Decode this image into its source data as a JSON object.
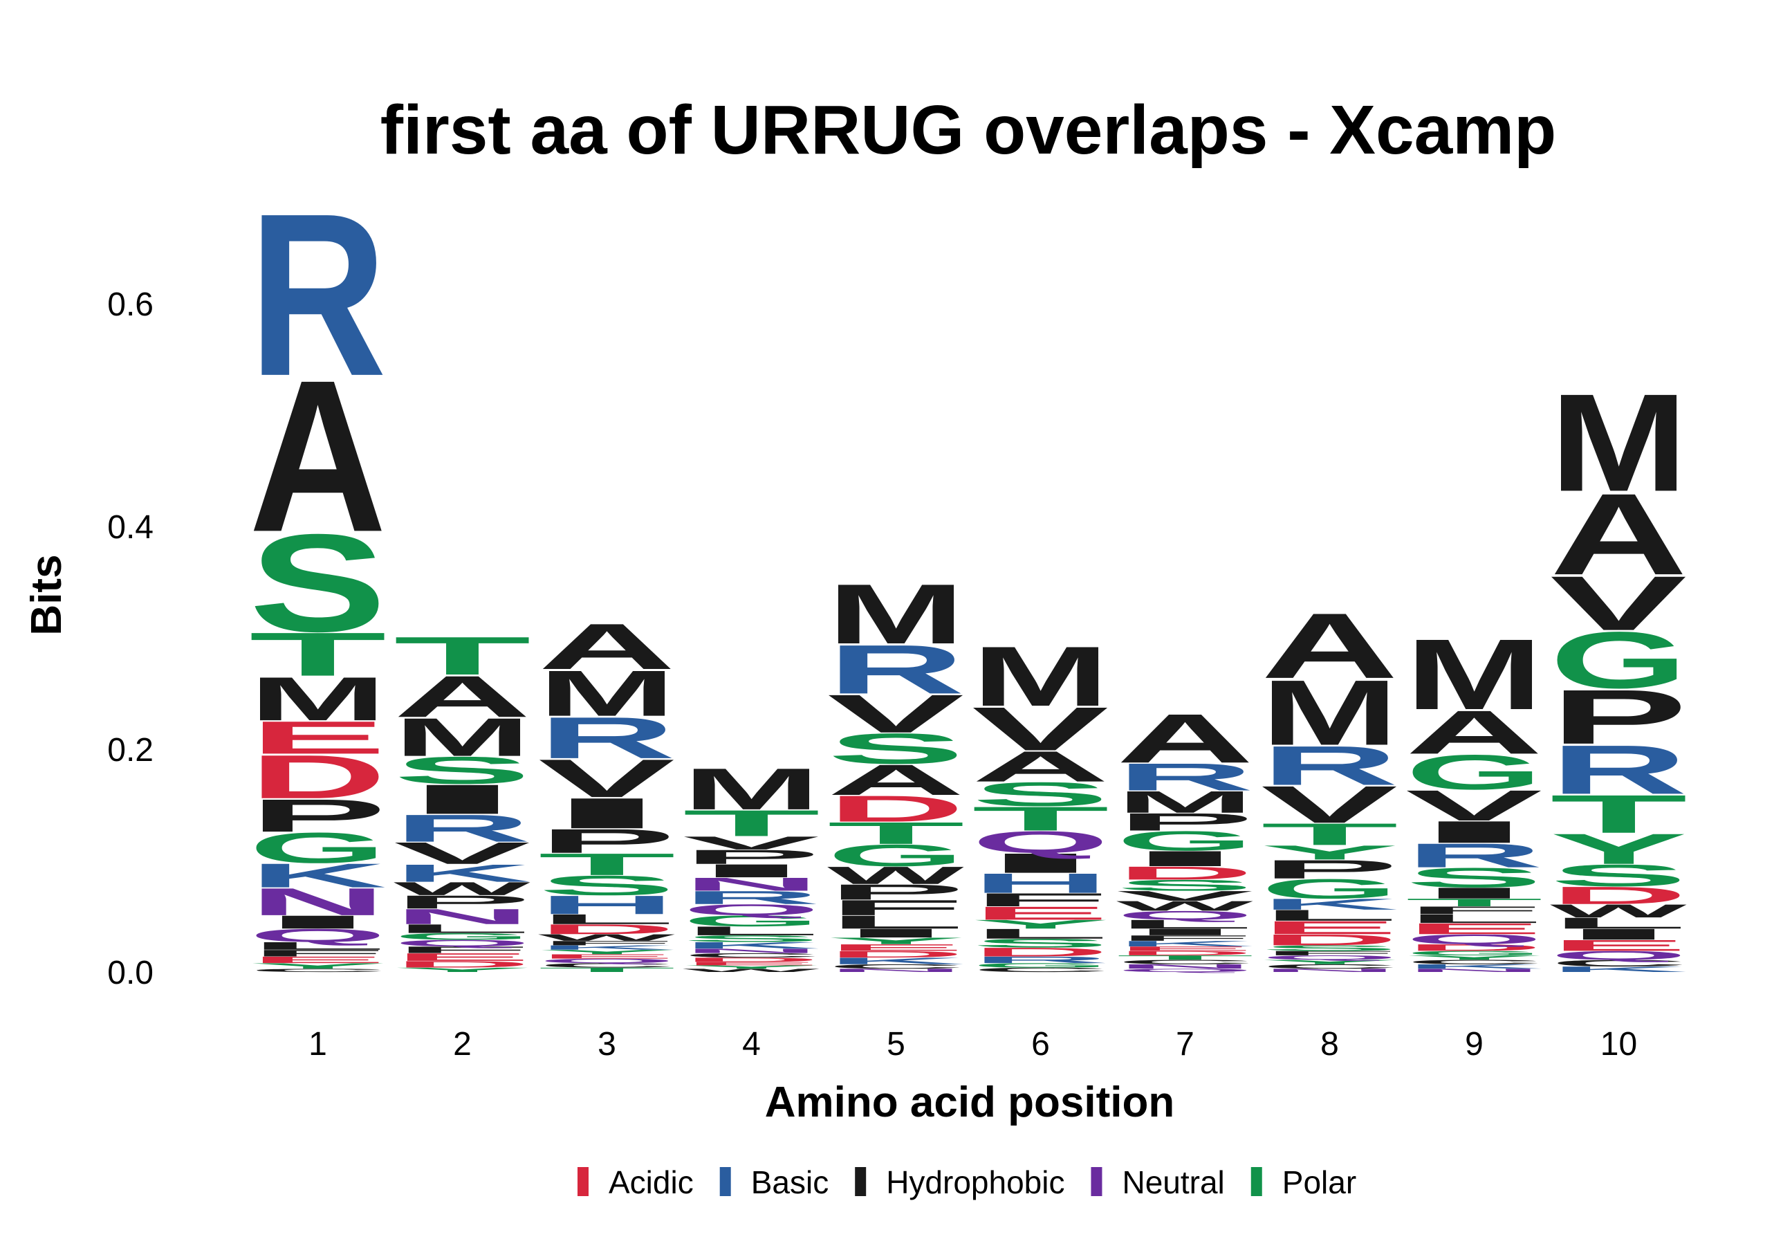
{
  "chart_data": {
    "type": "sequence-logo",
    "title": "first aa of URRUG overlaps - Xcamp",
    "xlabel": "Amino acid position",
    "ylabel": "Bits",
    "ylim": [
      0,
      0.68
    ],
    "yticks": [
      "0.0",
      "0.2",
      "0.4",
      "0.6"
    ],
    "ytick_values": [
      0,
      0.2,
      0.4,
      0.6
    ],
    "positions": [
      "1",
      "2",
      "3",
      "4",
      "5",
      "6",
      "7",
      "8",
      "9",
      "10"
    ],
    "legend": [
      {
        "label": "Acidic",
        "color": "#d7263d"
      },
      {
        "label": "Basic",
        "color": "#2a5d9f"
      },
      {
        "label": "Hydrophobic",
        "color": "#1a1a1a"
      },
      {
        "label": "Neutral",
        "color": "#6a2c9f"
      },
      {
        "label": "Polar",
        "color": "#11924a"
      }
    ],
    "stacks": [
      [
        [
          "C",
          0.003
        ],
        [
          "Y",
          0.005
        ],
        [
          "E",
          0.006
        ],
        [
          "F",
          0.006
        ],
        [
          "L",
          0.007
        ],
        [
          "Q",
          0.012
        ],
        [
          "I",
          0.012
        ],
        [
          "N",
          0.025
        ],
        [
          "K",
          0.022
        ],
        [
          "G",
          0.028
        ],
        [
          "P",
          0.03
        ],
        [
          "D",
          0.04
        ],
        [
          "E",
          0.03
        ],
        [
          "M",
          0.04
        ],
        [
          "T",
          0.04
        ],
        [
          "S",
          0.09
        ],
        [
          "A",
          0.14
        ],
        [
          "R",
          0.15
        ]
      ],
      [
        [
          "Y",
          0.004
        ],
        [
          "D",
          0.006
        ],
        [
          "E",
          0.007
        ],
        [
          "F",
          0.006
        ],
        [
          "Q",
          0.006
        ],
        [
          "G",
          0.006
        ],
        [
          "L",
          0.008
        ],
        [
          "N",
          0.014
        ],
        [
          "P",
          0.012
        ],
        [
          "W",
          0.012
        ],
        [
          "K",
          0.016
        ],
        [
          "V",
          0.02
        ],
        [
          "R",
          0.025
        ],
        [
          "I",
          0.027
        ],
        [
          "S",
          0.025
        ],
        [
          "M",
          0.035
        ],
        [
          "A",
          0.038
        ],
        [
          "T",
          0.035
        ]
      ],
      [
        [
          "T",
          0.004
        ],
        [
          "C",
          0.004
        ],
        [
          "Q",
          0.004
        ],
        [
          "E",
          0.004
        ],
        [
          "Y",
          0.004
        ],
        [
          "K",
          0.004
        ],
        [
          "F",
          0.004
        ],
        [
          "W",
          0.006
        ],
        [
          "D",
          0.009
        ],
        [
          "L",
          0.009
        ],
        [
          "H",
          0.017
        ],
        [
          "S",
          0.018
        ],
        [
          "T",
          0.02
        ],
        [
          "P",
          0.022
        ],
        [
          "I",
          0.028
        ],
        [
          "V",
          0.035
        ],
        [
          "R",
          0.038
        ],
        [
          "M",
          0.042
        ],
        [
          "A",
          0.042
        ]
      ],
      [
        [
          "W",
          0.003
        ],
        [
          "Y",
          0.003
        ],
        [
          "E",
          0.003
        ],
        [
          "D",
          0.004
        ],
        [
          "C",
          0.004
        ],
        [
          "N",
          0.004
        ],
        [
          "K",
          0.006
        ],
        [
          "S",
          0.006
        ],
        [
          "L",
          0.008
        ],
        [
          "G",
          0.01
        ],
        [
          "Q",
          0.01
        ],
        [
          "R",
          0.012
        ],
        [
          "N",
          0.012
        ],
        [
          "I",
          0.012
        ],
        [
          "P",
          0.013
        ],
        [
          "V",
          0.012
        ],
        [
          "T",
          0.024
        ],
        [
          "M",
          0.038
        ]
      ],
      [
        [
          "N",
          0.003
        ],
        [
          "C",
          0.004
        ],
        [
          "K",
          0.006
        ],
        [
          "D",
          0.006
        ],
        [
          "E",
          0.006
        ],
        [
          "Y",
          0.006
        ],
        [
          "I",
          0.008
        ],
        [
          "L",
          0.012
        ],
        [
          "F",
          0.014
        ],
        [
          "P",
          0.014
        ],
        [
          "W",
          0.016
        ],
        [
          "G",
          0.02
        ],
        [
          "T",
          0.02
        ],
        [
          "D",
          0.024
        ],
        [
          "A",
          0.028
        ],
        [
          "S",
          0.028
        ],
        [
          "V",
          0.035
        ],
        [
          "R",
          0.045
        ],
        [
          "M",
          0.055
        ]
      ],
      [
        [
          "C",
          0.004
        ],
        [
          "G",
          0.004
        ],
        [
          "R",
          0.006
        ],
        [
          "D",
          0.008
        ],
        [
          "S",
          0.008
        ],
        [
          "L",
          0.009
        ],
        [
          "Y",
          0.008
        ],
        [
          "E",
          0.012
        ],
        [
          "F",
          0.012
        ],
        [
          "H",
          0.018
        ],
        [
          "I",
          0.018
        ],
        [
          "Q",
          0.02
        ],
        [
          "T",
          0.022
        ],
        [
          "S",
          0.022
        ],
        [
          "A",
          0.028
        ],
        [
          "V",
          0.04
        ],
        [
          "M",
          0.055
        ]
      ],
      [
        [
          "Q",
          0.003
        ],
        [
          "N",
          0.004
        ],
        [
          "C",
          0.004
        ],
        [
          "T",
          0.004
        ],
        [
          "D",
          0.004
        ],
        [
          "E",
          0.004
        ],
        [
          "K",
          0.005
        ],
        [
          "F",
          0.005
        ],
        [
          "I",
          0.006
        ],
        [
          "L",
          0.008
        ],
        [
          "Q",
          0.008
        ],
        [
          "W",
          0.009
        ],
        [
          "V",
          0.009
        ],
        [
          "S",
          0.01
        ],
        [
          "D",
          0.012
        ],
        [
          "I",
          0.014
        ],
        [
          "G",
          0.018
        ],
        [
          "P",
          0.016
        ],
        [
          "M",
          0.02
        ],
        [
          "R",
          0.025
        ],
        [
          "A",
          0.045
        ]
      ],
      [
        [
          "N",
          0.003
        ],
        [
          "C",
          0.004
        ],
        [
          "Y",
          0.004
        ],
        [
          "Q",
          0.004
        ],
        [
          "F",
          0.004
        ],
        [
          "S",
          0.005
        ],
        [
          "D",
          0.01
        ],
        [
          "E",
          0.012
        ],
        [
          "L",
          0.01
        ],
        [
          "K",
          0.01
        ],
        [
          "G",
          0.018
        ],
        [
          "P",
          0.017
        ],
        [
          "Y",
          0.013
        ],
        [
          "T",
          0.02
        ],
        [
          "V",
          0.034
        ],
        [
          "R",
          0.036
        ],
        [
          "M",
          0.06
        ],
        [
          "A",
          0.06
        ]
      ],
      [
        [
          "N",
          0.003
        ],
        [
          "K",
          0.004
        ],
        [
          "C",
          0.004
        ],
        [
          "Y",
          0.004
        ],
        [
          "G",
          0.004
        ],
        [
          "D",
          0.006
        ],
        [
          "Q",
          0.009
        ],
        [
          "E",
          0.01
        ],
        [
          "L",
          0.008
        ],
        [
          "F",
          0.007
        ],
        [
          "T",
          0.007
        ],
        [
          "I",
          0.01
        ],
        [
          "S",
          0.018
        ],
        [
          "R",
          0.022
        ],
        [
          "I",
          0.02
        ],
        [
          "V",
          0.028
        ],
        [
          "G",
          0.032
        ],
        [
          "A",
          0.04
        ],
        [
          "M",
          0.065
        ]
      ],
      [
        [
          "K",
          0.005
        ],
        [
          "C",
          0.006
        ],
        [
          "Q",
          0.008
        ],
        [
          "E",
          0.01
        ],
        [
          "I",
          0.01
        ],
        [
          "L",
          0.01
        ],
        [
          "W",
          0.012
        ],
        [
          "D",
          0.016
        ],
        [
          "S",
          0.02
        ],
        [
          "Y",
          0.028
        ],
        [
          "T",
          0.035
        ],
        [
          "R",
          0.045
        ],
        [
          "P",
          0.05
        ],
        [
          "G",
          0.052
        ],
        [
          "V",
          0.05
        ],
        [
          "A",
          0.075
        ],
        [
          "M",
          0.09
        ]
      ]
    ]
  }
}
